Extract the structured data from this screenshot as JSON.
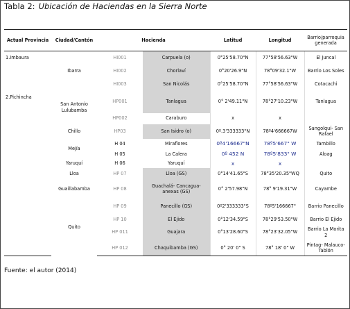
{
  "header": {
    "label": "Tabla 2:",
    "title": "Ubicación  de Haciendas en la Sierra Norte"
  },
  "table": {
    "columns": [
      "Actual Provincia",
      "Ciudad/Cantón",
      "Hacienda",
      "Latitud",
      "Longitud",
      "Barrio/parroquia generada"
    ],
    "rows": [
      {
        "province": "1.Imbaura",
        "city": "Ibarra",
        "code": "HI001",
        "hacienda": "Carpuela (o)",
        "latitude": "0°25'58.70\"N",
        "longitude": "77°58'56.63\"W",
        "barrio": "El Juncal"
      },
      {
        "code": "HI002",
        "hacienda": "Chorlaví",
        "latitude": "0°20'26.9\"N",
        "longitude": "78°09'32.1\"W",
        "barrio": "Barrio Los Soles"
      },
      {
        "code": "HI003",
        "hacienda": "San Nicolás",
        "latitude": "0°25'58.70\"N",
        "longitude": "77°58'56.63\"W",
        "barrio": "Cotacachi"
      },
      {
        "province": "2.Pichincha",
        "city": "San Antonio Lulubamba",
        "code": "HP001",
        "hacienda": "Tanlagua",
        "latitude": "0° 2'49.11\"N",
        "longitude": "78°27'10.23\"W",
        "barrio": "Tanlagua"
      },
      {
        "code": "HP002",
        "hacienda": "Caraburo",
        "latitude": "x",
        "longitude": "x"
      },
      {
        "city": "Chillo",
        "code": "HP03",
        "hacienda": "San Isidro (o)",
        "latitude": "0º.3'333333\"N",
        "longitude": "78º4'666667W",
        "barrio": "Sangolquí- San Rafael"
      },
      {
        "city": "Mejía",
        "code": "H 04",
        "hacienda": "Miraflores",
        "latitude": "0º4'16667\"N",
        "longitude": "78º5'667\" W",
        "barrio": "Tambillo"
      },
      {
        "code": "H 05",
        "hacienda": "La Calera",
        "latitude": "0º 452 N",
        "longitude": "78º5'833\" W",
        "barrio": "Aloag"
      },
      {
        "city": "Yaruquí",
        "code": "H 06",
        "hacienda": "Yaruquí",
        "latitude": "x",
        "longitude": "x"
      },
      {
        "city": "Lloa",
        "code": "HP 07",
        "hacienda": "Lloa (GS)",
        "latitude": "0°14'41.65\"S",
        "longitude": "78°35'20.35\"WQ",
        "barrio": "Quito"
      },
      {
        "city": "Guaillabamba",
        "code": "HP 08",
        "hacienda": "Guachalá- Cancagua- anexas (GS)",
        "latitude": "0° 2'57.98\"N",
        "longitude": "78° 9'19.31\"W",
        "barrio": "Cayambe"
      },
      {
        "city": "Quito",
        "code": "HP 09",
        "hacienda": "Panecillo (GS)",
        "latitude": "0º2'333333\"S",
        "longitude": "78º5'166667\"",
        "barrio": "Barrio Panecillo"
      },
      {
        "code": "HP 10",
        "hacienda": "El Ejido",
        "latitude": "0°12'34.59\"S",
        "longitude": "78°29'53.50\"W",
        "barrio": "Barrio El Ejido"
      },
      {
        "code": "HP 011",
        "hacienda": "Guajara",
        "latitude": "0°13'28.60\"S",
        "longitude": "78°23'32.05\"W",
        "barrio": "Barrio La Morita 2"
      },
      {
        "code": "HP 012",
        "hacienda": "Chaquibamba (GS)",
        "latitude": "0° 20' 0\" S",
        "longitude": "78° 18' 0\" W",
        "barrio": "Pintag- Malauco- Tablón"
      }
    ]
  },
  "footer": "Fuente: el autor (2014)"
}
